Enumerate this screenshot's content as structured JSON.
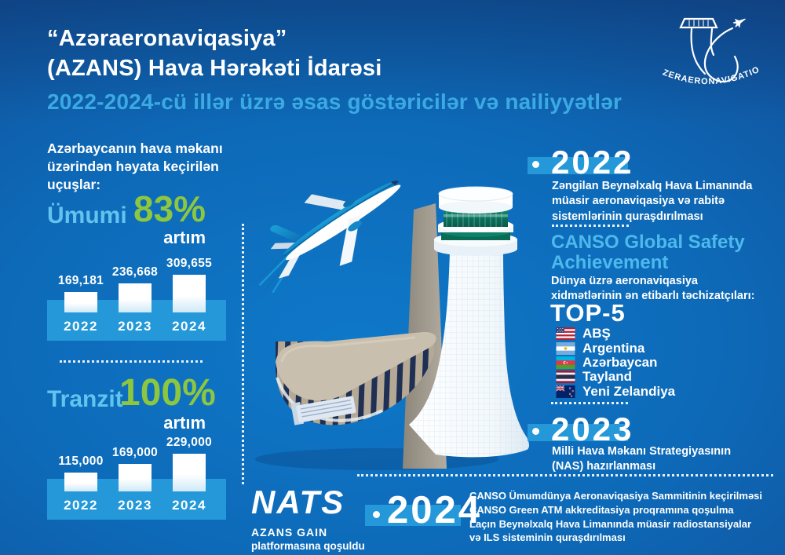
{
  "header": {
    "title_line1": "“Azəraeronaviqasiya”",
    "title_line2": "(AZANS) Hava Hərəkəti İdarəsi",
    "subtitle": "2022-2024-cü illər üzrə əsas göstəricilər və nailiyyətlər"
  },
  "org_logo": {
    "text": "AZERAERONAVIGATION"
  },
  "stats": {
    "intro_lines": [
      "Azərbaycanın hava məkanı",
      "üzərindən həyata keçirilən",
      "uçuşlar:"
    ],
    "total": {
      "label": "Ümumi",
      "pct": "83%",
      "word": "artım"
    },
    "transit": {
      "label": "Tranzit",
      "pct": "100%",
      "word": "artım"
    }
  },
  "chart_data": [
    {
      "type": "bar",
      "title": "Ümumi uçuşlar (83% artım)",
      "categories": [
        "2022",
        "2023",
        "2024"
      ],
      "values": [
        169181,
        236668,
        309655
      ],
      "labels": [
        "169,181",
        "236,668",
        "309,655"
      ],
      "ylim": [
        0,
        309655
      ],
      "legend_position": "none",
      "grid": false
    },
    {
      "type": "bar",
      "title": "Tranzit uçuşlar (100% artım)",
      "categories": [
        "2022",
        "2023",
        "2024"
      ],
      "values": [
        115000,
        169000,
        229000
      ],
      "labels": [
        "115,000",
        "169,000",
        "229,000"
      ],
      "ylim": [
        0,
        229000
      ],
      "legend_position": "none",
      "grid": false
    }
  ],
  "timeline": {
    "e2022": {
      "year": "2022",
      "lines": [
        "Zəngilan Beynəlxalq Hava Limanında",
        "müasir aeronaviqasiya və rabitə",
        "sistemlərinin quraşdırılması"
      ]
    },
    "canso": {
      "heading_lines": [
        "CANSO Global Safety",
        "Achievement"
      ],
      "intro_lines": [
        "Dünya üzrə aeronaviqasiya",
        "xidmətlərinin ən etibarlı təchizatçıları:"
      ],
      "top_label": "TOP-5",
      "countries": [
        {
          "label": "ABŞ",
          "flag": "us-flag-icon"
        },
        {
          "label": "Argentina",
          "flag": "argentina-flag-icon"
        },
        {
          "label": "Azərbaycan",
          "flag": "azerbaijan-flag-icon"
        },
        {
          "label": "Tayland",
          "flag": "thailand-flag-icon"
        },
        {
          "label": "Yeni Zelandiya",
          "flag": "new-zealand-flag-icon"
        }
      ]
    },
    "e2023": {
      "year": "2023",
      "lines": [
        "Milli Hava Məkanı Strategiyasının",
        "(NAS) hazırlanması"
      ]
    },
    "e2024": {
      "year": "2024",
      "lines": [
        "CANSO Ümumdünya Aeronaviqasiya Sammitinin keçirilməsi",
        "CANSO Green ATM akkreditasiya proqramına qoşulma",
        "Laçın Beynəlxalq Hava Limanında müasir radiostansiyalar",
        "və ILS sisteminin quraşdırılması"
      ]
    }
  },
  "partner": {
    "logo": "NATS",
    "line1": "AZANS GAIN",
    "line2": "platformasına qoşuldu"
  },
  "colors": {
    "accent_green": "#8DC63F",
    "band_blue": "#2498D8",
    "light_blue_text": "#62C3EF",
    "subtitle_blue": "#3BAAE3",
    "background_dark": "#164586",
    "background_bright": "#0F78C9"
  }
}
